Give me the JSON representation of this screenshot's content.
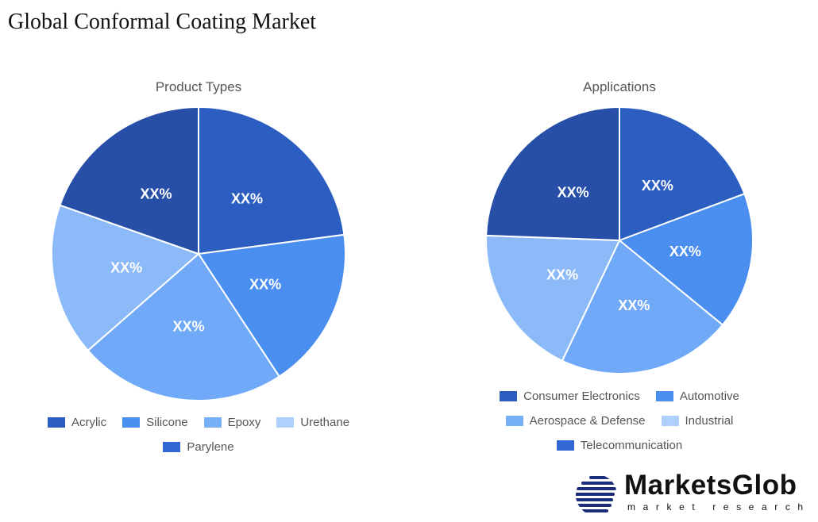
{
  "title": "Global Conformal Coating Market",
  "chart_data": [
    {
      "type": "pie",
      "title": "Product Types",
      "categories": [
        "Acrylic",
        "Silicone",
        "Epoxy",
        "Urethane",
        "Parylene"
      ],
      "values": [
        22.9,
        17.8,
        22.8,
        16.8,
        19.6
      ],
      "data_labels": [
        "XX%",
        "XX%",
        "XX%",
        "XX%",
        "XX%"
      ],
      "colors": [
        "#2c5ec2",
        "#4a8ef0",
        "#6fa9f7",
        "#8cbaf9",
        "#274fa8"
      ],
      "legend_colors": [
        "#2c5ec2",
        "#4a8ef0",
        "#78b0f8",
        "#aed0fc",
        "#3368d4"
      ],
      "legend": "bottom"
    },
    {
      "type": "pie",
      "title": "Applications",
      "categories": [
        "Consumer Electronics",
        "Automotive",
        "Aerospace & Defense",
        "Industrial",
        "Telecommunication"
      ],
      "values": [
        19.3,
        16.6,
        21.1,
        18.5,
        24.4
      ],
      "data_labels": [
        "XX%",
        "XX%",
        "XX%",
        "XX%",
        "XX%"
      ],
      "colors": [
        "#2c5ec2",
        "#4a8ef0",
        "#6fa9f7",
        "#8cbaf9",
        "#274fa8"
      ],
      "legend_colors": [
        "#2c5ec2",
        "#4a8ef0",
        "#78b0f8",
        "#aed0fc",
        "#3368d4"
      ],
      "legend": "bottom"
    }
  ],
  "logo": {
    "name": "MarketsGlob",
    "tagline": "market research"
  }
}
